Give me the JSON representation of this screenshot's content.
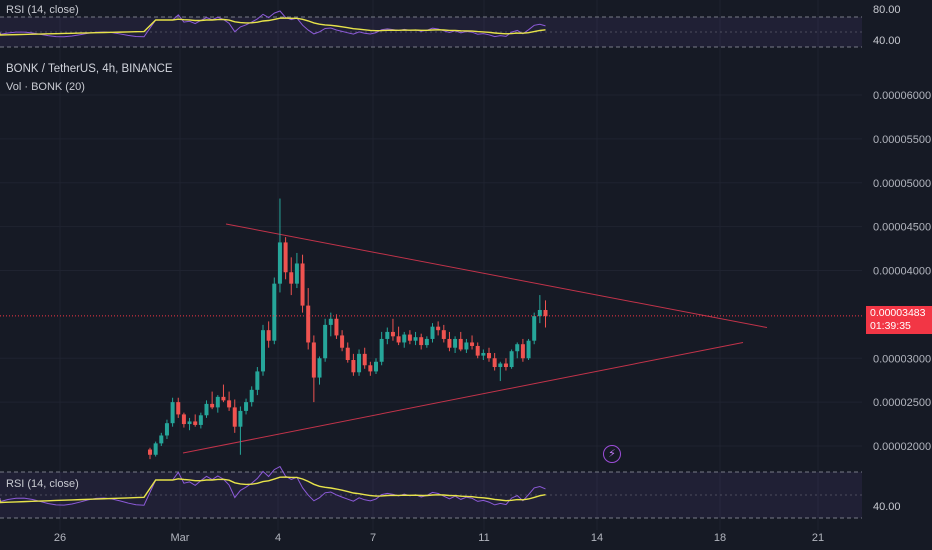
{
  "header": {
    "symbol_line": "BONK / TetherUS, 4h, BINANCE",
    "volume_label": "Vol · BONK (20)"
  },
  "top_rsi": {
    "label": "RSI (14, close)",
    "levels": [
      "80.00",
      "40.00"
    ]
  },
  "bottom_rsi": {
    "label": "RSI (14, close)",
    "level_label": "40.00"
  },
  "price_axis": {
    "ticks": [
      "0.00006000",
      "0.00005500",
      "0.00005000",
      "0.00004500",
      "0.00004000",
      "0.00003000",
      "0.00002500",
      "0.00002000"
    ],
    "current_price": "0.00003483",
    "countdown": "01:39:35"
  },
  "time_axis": {
    "ticks": [
      "26",
      "Mar",
      "4",
      "7",
      "11",
      "14",
      "18",
      "21"
    ]
  },
  "colors": {
    "up": "#26a69a",
    "down": "#ef5350",
    "trend": "#c2334a",
    "rsi": "#8c5ad8",
    "rsi_ma": "#e7e34a",
    "price_tag": "#f23645"
  },
  "icons": {
    "alert": "lightning-icon"
  },
  "chart_data": {
    "type": "candlestick",
    "title": "BONK / TetherUS, 4h, BINANCE",
    "ylabel": "",
    "xlabel": "",
    "y_range": [
      1.75e-05,
      6.25e-05
    ],
    "x_ticks": [
      "26",
      "Mar",
      "4",
      "7",
      "11",
      "14",
      "18",
      "21"
    ],
    "candles": [
      [
        1.96e-05,
        1.98e-05,
        1.85e-05,
        1.9e-05
      ],
      [
        1.9e-05,
        2.05e-05,
        1.88e-05,
        2.03e-05
      ],
      [
        2.03e-05,
        2.15e-05,
        2e-05,
        2.12e-05
      ],
      [
        2.12e-05,
        2.3e-05,
        2.08e-05,
        2.26e-05
      ],
      [
        2.26e-05,
        2.55e-05,
        2.22e-05,
        2.5e-05
      ],
      [
        2.5e-05,
        2.55e-05,
        2.32e-05,
        2.36e-05
      ],
      [
        2.36e-05,
        2.38e-05,
        2.21e-05,
        2.25e-05
      ],
      [
        2.25e-05,
        2.32e-05,
        2.18e-05,
        2.28e-05
      ],
      [
        2.28e-05,
        2.36e-05,
        2.22e-05,
        2.24e-05
      ],
      [
        2.24e-05,
        2.38e-05,
        2.2e-05,
        2.35e-05
      ],
      [
        2.35e-05,
        2.52e-05,
        2.32e-05,
        2.48e-05
      ],
      [
        2.48e-05,
        2.62e-05,
        2.42e-05,
        2.44e-05
      ],
      [
        2.44e-05,
        2.58e-05,
        2.38e-05,
        2.56e-05
      ],
      [
        2.56e-05,
        2.7e-05,
        2.5e-05,
        2.52e-05
      ],
      [
        2.52e-05,
        2.62e-05,
        2.4e-05,
        2.44e-05
      ],
      [
        2.44e-05,
        2.53e-05,
        2.15e-05,
        2.22e-05
      ],
      [
        2.22e-05,
        2.45e-05,
        1.9e-05,
        2.4e-05
      ],
      [
        2.4e-05,
        2.54e-05,
        2.36e-05,
        2.5e-05
      ],
      [
        2.5e-05,
        2.68e-05,
        2.45e-05,
        2.64e-05
      ],
      [
        2.64e-05,
        2.9e-05,
        2.58e-05,
        2.85e-05
      ],
      [
        2.85e-05,
        3.38e-05,
        2.8e-05,
        3.32e-05
      ],
      [
        3.32e-05,
        3.42e-05,
        3.12e-05,
        3.2e-05
      ],
      [
        3.2e-05,
        3.92e-05,
        3.16e-05,
        3.85e-05
      ],
      [
        3.85e-05,
        4.82e-05,
        3.75e-05,
        4.32e-05
      ],
      [
        4.32e-05,
        4.38e-05,
        3.9e-05,
        3.98e-05
      ],
      [
        3.98e-05,
        4.15e-05,
        3.72e-05,
        3.85e-05
      ],
      [
        3.85e-05,
        4.2e-05,
        3.8e-05,
        4.08e-05
      ],
      [
        4.08e-05,
        4.18e-05,
        3.52e-05,
        3.6e-05
      ],
      [
        3.6e-05,
        3.8e-05,
        3.1e-05,
        3.18e-05
      ],
      [
        3.18e-05,
        3.26e-05,
        2.5e-05,
        2.78e-05
      ],
      [
        2.78e-05,
        3.02e-05,
        2.7e-05,
        3e-05
      ],
      [
        3e-05,
        3.45e-05,
        2.96e-05,
        3.38e-05
      ],
      [
        3.38e-05,
        3.52e-05,
        3.25e-05,
        3.45e-05
      ],
      [
        3.45e-05,
        3.5e-05,
        3.22e-05,
        3.26e-05
      ],
      [
        3.26e-05,
        3.32e-05,
        3.08e-05,
        3.12e-05
      ],
      [
        3.12e-05,
        3.18e-05,
        2.95e-05,
        2.98e-05
      ],
      [
        2.98e-05,
        3.05e-05,
        2.8e-05,
        2.84e-05
      ],
      [
        2.84e-05,
        3.1e-05,
        2.8e-05,
        3.05e-05
      ],
      [
        3.05e-05,
        3.12e-05,
        2.88e-05,
        2.92e-05
      ],
      [
        2.92e-05,
        2.96e-05,
        2.8e-05,
        2.85e-05
      ],
      [
        2.85e-05,
        3e-05,
        2.82e-05,
        2.96e-05
      ],
      [
        2.96e-05,
        3.3e-05,
        2.92e-05,
        3.22e-05
      ],
      [
        3.22e-05,
        3.35e-05,
        3.16e-05,
        3.3e-05
      ],
      [
        3.3e-05,
        3.45e-05,
        3.2e-05,
        3.25e-05
      ],
      [
        3.25e-05,
        3.36e-05,
        3.15e-05,
        3.18e-05
      ],
      [
        3.18e-05,
        3.3e-05,
        3.12e-05,
        3.27e-05
      ],
      [
        3.27e-05,
        3.32e-05,
        3.16e-05,
        3.2e-05
      ],
      [
        3.2e-05,
        3.3e-05,
        3.15e-05,
        3.24e-05
      ],
      [
        3.24e-05,
        3.28e-05,
        3.1e-05,
        3.15e-05
      ],
      [
        3.15e-05,
        3.25e-05,
        3.12e-05,
        3.22e-05
      ],
      [
        3.22e-05,
        3.4e-05,
        3.18e-05,
        3.36e-05
      ],
      [
        3.36e-05,
        3.42e-05,
        3.26e-05,
        3.32e-05
      ],
      [
        3.32e-05,
        3.38e-05,
        3.18e-05,
        3.22e-05
      ],
      [
        3.22e-05,
        3.3e-05,
        3.08e-05,
        3.12e-05
      ],
      [
        3.12e-05,
        3.25e-05,
        3.06e-05,
        3.22e-05
      ],
      [
        3.22e-05,
        3.3e-05,
        3.08e-05,
        3.1e-05
      ],
      [
        3.1e-05,
        3.22e-05,
        3.06e-05,
        3.18e-05
      ],
      [
        3.18e-05,
        3.26e-05,
        3.1e-05,
        3.14e-05
      ],
      [
        3.14e-05,
        3.18e-05,
        3e-05,
        3.03e-05
      ],
      [
        3.03e-05,
        3.1e-05,
        2.98e-05,
        3.06e-05
      ],
      [
        3.06e-05,
        3.12e-05,
        2.96e-05,
        3e-05
      ],
      [
        3e-05,
        3.06e-05,
        2.86e-05,
        2.9e-05
      ],
      [
        2.9e-05,
        2.96e-05,
        2.74e-05,
        2.94e-05
      ],
      [
        2.94e-05,
        3e-05,
        2.86e-05,
        2.9e-05
      ],
      [
        2.9e-05,
        3.1e-05,
        2.88e-05,
        3.08e-05
      ],
      [
        3.08e-05,
        3.18e-05,
        3e-05,
        3.16e-05
      ],
      [
        3.16e-05,
        3.22e-05,
        2.96e-05,
        3e-05
      ],
      [
        3e-05,
        3.22e-05,
        2.98e-05,
        3.2e-05
      ],
      [
        3.2e-05,
        3.52e-05,
        3.16e-05,
        3.48e-05
      ],
      [
        3.48e-05,
        3.72e-05,
        3.4e-05,
        3.55e-05
      ],
      [
        3.55e-05,
        3.66e-05,
        3.35e-05,
        3.48e-05
      ]
    ],
    "overlay_lines": [
      {
        "name": "",
        "points": [
          [
            0,
            1.92e-05
          ],
          [
            80,
            3.18e-05
          ]
        ]
      },
      {
        "name": "",
        "points": [
          [
            18,
            4.53e-05
          ],
          [
            85,
            3.35e-05
          ]
        ]
      }
    ],
    "rsi_range_shown": [
      30,
      85
    ],
    "rsi_levels": [
      80,
      40
    ]
  }
}
